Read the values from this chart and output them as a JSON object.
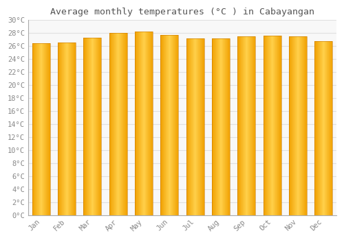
{
  "title": "Average monthly temperatures (°C ) in Cabayangan",
  "months": [
    "Jan",
    "Feb",
    "Mar",
    "Apr",
    "May",
    "Jun",
    "Jul",
    "Aug",
    "Sep",
    "Oct",
    "Nov",
    "Dec"
  ],
  "values": [
    26.5,
    26.6,
    27.3,
    28.0,
    28.3,
    27.7,
    27.2,
    27.2,
    27.5,
    27.6,
    27.5,
    26.8
  ],
  "ylim": [
    0,
    30
  ],
  "yticks": [
    0,
    2,
    4,
    6,
    8,
    10,
    12,
    14,
    16,
    18,
    20,
    22,
    24,
    26,
    28,
    30
  ],
  "bar_color_center": "#FFD04A",
  "bar_color_edge": "#F0A000",
  "bar_color_border": "#C87800",
  "background_color": "#FFFFFF",
  "plot_bg_color": "#F8F8F8",
  "grid_color": "#E0E0E0",
  "title_fontsize": 9.5,
  "tick_fontsize": 7.5,
  "font_family": "monospace",
  "bar_width": 0.7
}
